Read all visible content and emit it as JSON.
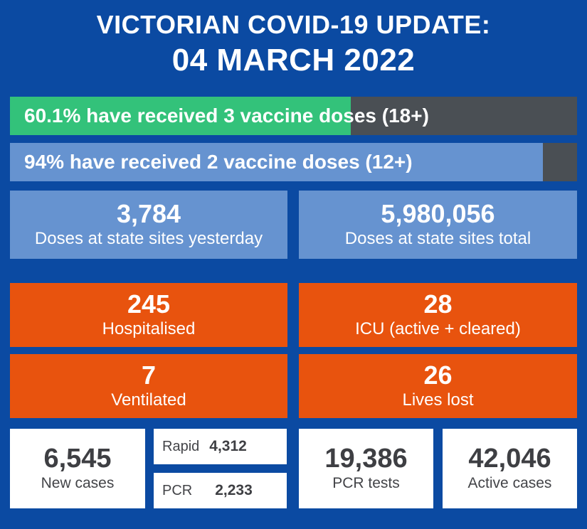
{
  "header": {
    "title_line1": "VICTORIAN COVID-19 UPDATE:",
    "title_line2": "04 MARCH 2022"
  },
  "vaccination": {
    "three_dose": {
      "label": "60.1% have received 3 vaccine doses (18+)",
      "percent": 60.1,
      "color": "#33c27a"
    },
    "two_dose": {
      "label": "94% have received 2 vaccine doses (12+)",
      "percent": 94,
      "color": "#6693d0"
    },
    "bar_background": "#4a4f54"
  },
  "doses": {
    "yesterday": {
      "value": "3,784",
      "label": "Doses at state sites yesterday"
    },
    "total": {
      "value": "5,980,056",
      "label": "Doses at state sites total"
    }
  },
  "hospital": {
    "hospitalised": {
      "value": "245",
      "label": "Hospitalised"
    },
    "icu": {
      "value": "28",
      "label": "ICU (active + cleared)"
    },
    "ventilated": {
      "value": "7",
      "label": "Ventilated"
    },
    "lives_lost": {
      "value": "26",
      "label": "Lives lost"
    }
  },
  "cases": {
    "new_cases": {
      "value": "6,545",
      "label": "New cases"
    },
    "rapid": {
      "label": "Rapid",
      "value": "4,312"
    },
    "pcr": {
      "label": "PCR",
      "value": "2,233"
    },
    "pcr_tests": {
      "value": "19,386",
      "label": "PCR tests"
    },
    "active_cases": {
      "value": "42,046",
      "label": "Active cases"
    }
  },
  "colors": {
    "background": "#0b4aa2",
    "panel_blue": "#6693d0",
    "panel_orange": "#e8530e",
    "dose3_green": "#33c27a"
  }
}
